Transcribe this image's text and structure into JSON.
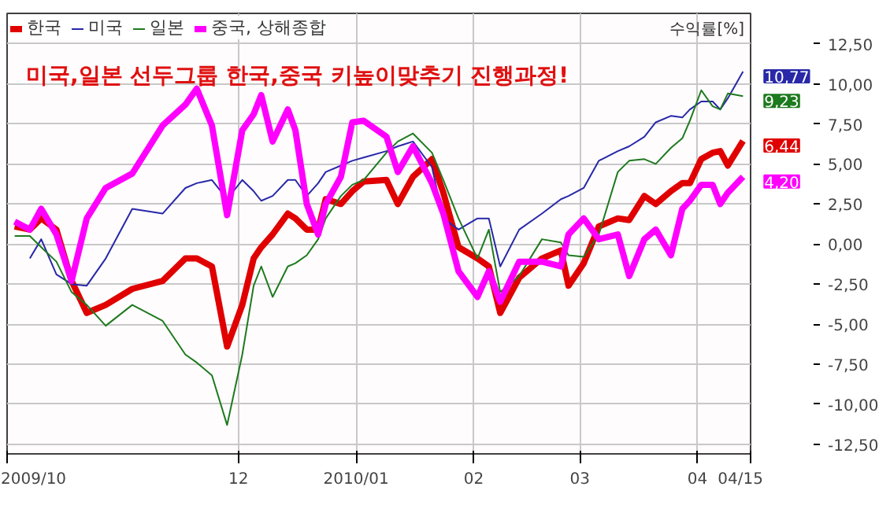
{
  "chart_data": {
    "type": "line",
    "title": "미국,일본 선두그룹 한국,중국 키높이맞추기 진행과정!",
    "ylabel": "수익률[%]",
    "x": [
      "2009-10-03",
      "2009-10-07",
      "2009-10-10",
      "2009-10-14",
      "2009-10-18",
      "2009-10-22",
      "2009-10-27",
      "2009-11-03",
      "2009-11-11",
      "2009-11-17",
      "2009-11-20",
      "2009-11-24",
      "2009-11-28",
      "2009-12-02",
      "2009-12-05",
      "2009-12-07",
      "2009-12-10",
      "2009-12-14",
      "2009-12-16",
      "2009-12-19",
      "2009-12-22",
      "2009-12-24",
      "2009-12-28",
      "2009-12-31",
      "2010-01-03",
      "2010-01-09",
      "2010-01-12",
      "2010-01-16",
      "2010-01-21",
      "2010-01-24",
      "2010-01-28",
      "2010-02-02",
      "2010-02-05",
      "2010-02-08",
      "2010-02-13",
      "2010-02-19",
      "2010-02-24",
      "2010-02-26",
      "2010-03-02",
      "2010-03-06",
      "2010-03-11",
      "2010-03-14",
      "2010-03-18",
      "2010-03-21",
      "2010-03-25",
      "2010-03-28",
      "2010-03-30",
      "2010-04-02",
      "2010-04-05",
      "2010-04-07",
      "2010-04-09",
      "2010-04-13"
    ],
    "series": [
      {
        "name": "한국",
        "color": "#e00000",
        "values": [
          1.1,
          0.9,
          1.6,
          0.9,
          -2.3,
          -4.3,
          -3.8,
          -2.8,
          -2.3,
          -0.9,
          -0.9,
          -1.4,
          -6.4,
          -3.8,
          -0.9,
          -0.2,
          0.6,
          1.9,
          1.6,
          0.9,
          0.9,
          2.8,
          2.5,
          3.3,
          3.9,
          4.0,
          2.5,
          4.2,
          5.3,
          3.2,
          -0.2,
          -0.9,
          -1.4,
          -4.3,
          -2.1,
          -0.9,
          -0.4,
          -2.6,
          -1.2,
          1.1,
          1.6,
          1.5,
          3.0,
          2.5,
          3.3,
          3.8,
          3.8,
          5.3,
          5.7,
          5.8,
          4.9,
          6.44
        ],
        "value_labels": [
          null,
          null,
          null,
          null,
          null,
          null,
          null,
          null,
          null,
          null,
          null,
          null,
          null,
          null,
          null,
          null,
          null,
          null,
          null,
          null,
          null,
          null,
          null,
          null,
          null,
          null,
          null,
          null,
          null,
          null,
          null,
          null,
          null,
          null,
          null,
          null,
          null,
          null,
          null,
          null,
          null,
          null,
          null,
          null,
          null,
          null,
          null,
          null,
          null,
          null,
          null,
          "6,44"
        ]
      },
      {
        "name": "미국",
        "color": "#2828a8",
        "values": [
          null,
          -0.9,
          0.3,
          -1.9,
          -2.5,
          -2.6,
          -0.9,
          2.2,
          1.9,
          3.5,
          3.8,
          4.0,
          2.8,
          4.0,
          3.3,
          2.7,
          3.0,
          4.0,
          4.0,
          3.0,
          3.8,
          4.5,
          4.9,
          5.2,
          5.4,
          5.8,
          6.1,
          6.4,
          4.8,
          1.6,
          0.9,
          1.6,
          1.6,
          -1.4,
          0.9,
          1.9,
          2.8,
          3.0,
          3.5,
          5.2,
          5.8,
          6.1,
          6.7,
          7.6,
          8.0,
          7.9,
          8.4,
          8.9,
          8.9,
          8.4,
          9.1,
          10.77
        ],
        "value_labels": [
          null,
          null,
          null,
          null,
          null,
          null,
          null,
          null,
          null,
          null,
          null,
          null,
          null,
          null,
          null,
          null,
          null,
          null,
          null,
          null,
          null,
          null,
          null,
          null,
          null,
          null,
          null,
          null,
          null,
          null,
          null,
          null,
          null,
          null,
          null,
          null,
          null,
          null,
          null,
          null,
          null,
          null,
          null,
          null,
          null,
          null,
          null,
          null,
          null,
          null,
          null,
          "10,77"
        ]
      },
      {
        "name": "일본",
        "color": "#1e7a1e",
        "values": [
          0.5,
          0.5,
          -0.2,
          -1.1,
          -3.0,
          -3.8,
          -5.1,
          -3.8,
          -4.8,
          -6.9,
          -7.4,
          -8.2,
          -11.3,
          -6.9,
          -2.6,
          -1.4,
          -3.3,
          -1.4,
          -1.2,
          -0.7,
          0.3,
          1.6,
          3.0,
          3.7,
          4.0,
          5.7,
          6.4,
          6.9,
          5.7,
          4.0,
          1.6,
          -0.9,
          0.9,
          -3.0,
          -2.0,
          0.3,
          0.1,
          -0.7,
          -0.8,
          0.6,
          4.5,
          5.2,
          5.3,
          5.0,
          6.0,
          6.6,
          7.7,
          9.6,
          8.6,
          8.4,
          9.4,
          9.23
        ],
        "value_labels": [
          null,
          null,
          null,
          null,
          null,
          null,
          null,
          null,
          null,
          null,
          null,
          null,
          null,
          null,
          null,
          null,
          null,
          null,
          null,
          null,
          null,
          null,
          null,
          null,
          null,
          null,
          null,
          null,
          null,
          null,
          null,
          null,
          null,
          null,
          null,
          null,
          null,
          null,
          null,
          null,
          null,
          null,
          null,
          null,
          null,
          null,
          null,
          null,
          null,
          null,
          null,
          "9,23"
        ]
      },
      {
        "name": "중국, 상해종합",
        "color": "#ff00ff",
        "values": [
          1.4,
          0.9,
          2.2,
          0.6,
          -2.3,
          1.6,
          3.5,
          4.4,
          7.4,
          8.7,
          9.7,
          7.4,
          1.8,
          7.1,
          8.1,
          9.3,
          6.4,
          8.4,
          7.1,
          2.5,
          0.6,
          2.5,
          4.2,
          7.6,
          7.7,
          6.7,
          4.5,
          6.1,
          3.8,
          1.9,
          -1.7,
          -3.3,
          -1.7,
          -3.6,
          -1.1,
          -1.1,
          -1.4,
          0.6,
          1.6,
          0.3,
          0.6,
          -2.0,
          0.3,
          0.9,
          -0.7,
          2.2,
          2.7,
          3.7,
          3.7,
          2.5,
          3.2,
          4.2
        ],
        "value_labels": [
          null,
          null,
          null,
          null,
          null,
          null,
          null,
          null,
          null,
          null,
          null,
          null,
          null,
          null,
          null,
          null,
          null,
          null,
          null,
          null,
          null,
          null,
          null,
          null,
          null,
          null,
          null,
          null,
          null,
          null,
          null,
          null,
          null,
          null,
          null,
          null,
          null,
          null,
          null,
          null,
          null,
          null,
          null,
          null,
          null,
          null,
          null,
          null,
          null,
          null,
          null,
          "4,20"
        ]
      }
    ],
    "xlim": [
      "2009-10-01",
      "2010-04-15"
    ],
    "xticks": [
      {
        "value": "2009-10-01",
        "label": "2009/10"
      },
      {
        "value": "2009-12-01",
        "label": "12"
      },
      {
        "value": "2010-01-01",
        "label": "2010/01"
      },
      {
        "value": "2010-02-01",
        "label": "02"
      },
      {
        "value": "2010-03-01",
        "label": "03"
      },
      {
        "value": "2010-04-01",
        "label": "04"
      },
      {
        "value": "2010-04-15",
        "label": "04/15"
      }
    ],
    "ylim": [
      -13.1,
      14.4
    ],
    "yticks": [
      {
        "value": -12.5,
        "label": "-12,50"
      },
      {
        "value": -10,
        "label": "-10,00"
      },
      {
        "value": -7.5,
        "label": "-7,50"
      },
      {
        "value": -5,
        "label": "-5,00"
      },
      {
        "value": -2.5,
        "label": "-2,50"
      },
      {
        "value": 0,
        "label": "0,00"
      },
      {
        "value": 2.5,
        "label": "2,50"
      },
      {
        "value": 5,
        "label": "5,00"
      },
      {
        "value": 7.5,
        "label": "7,50"
      },
      {
        "value": 10,
        "label": "10,00"
      },
      {
        "value": 12.5,
        "label": "12,50"
      }
    ],
    "grid": true,
    "legend": "top left"
  }
}
